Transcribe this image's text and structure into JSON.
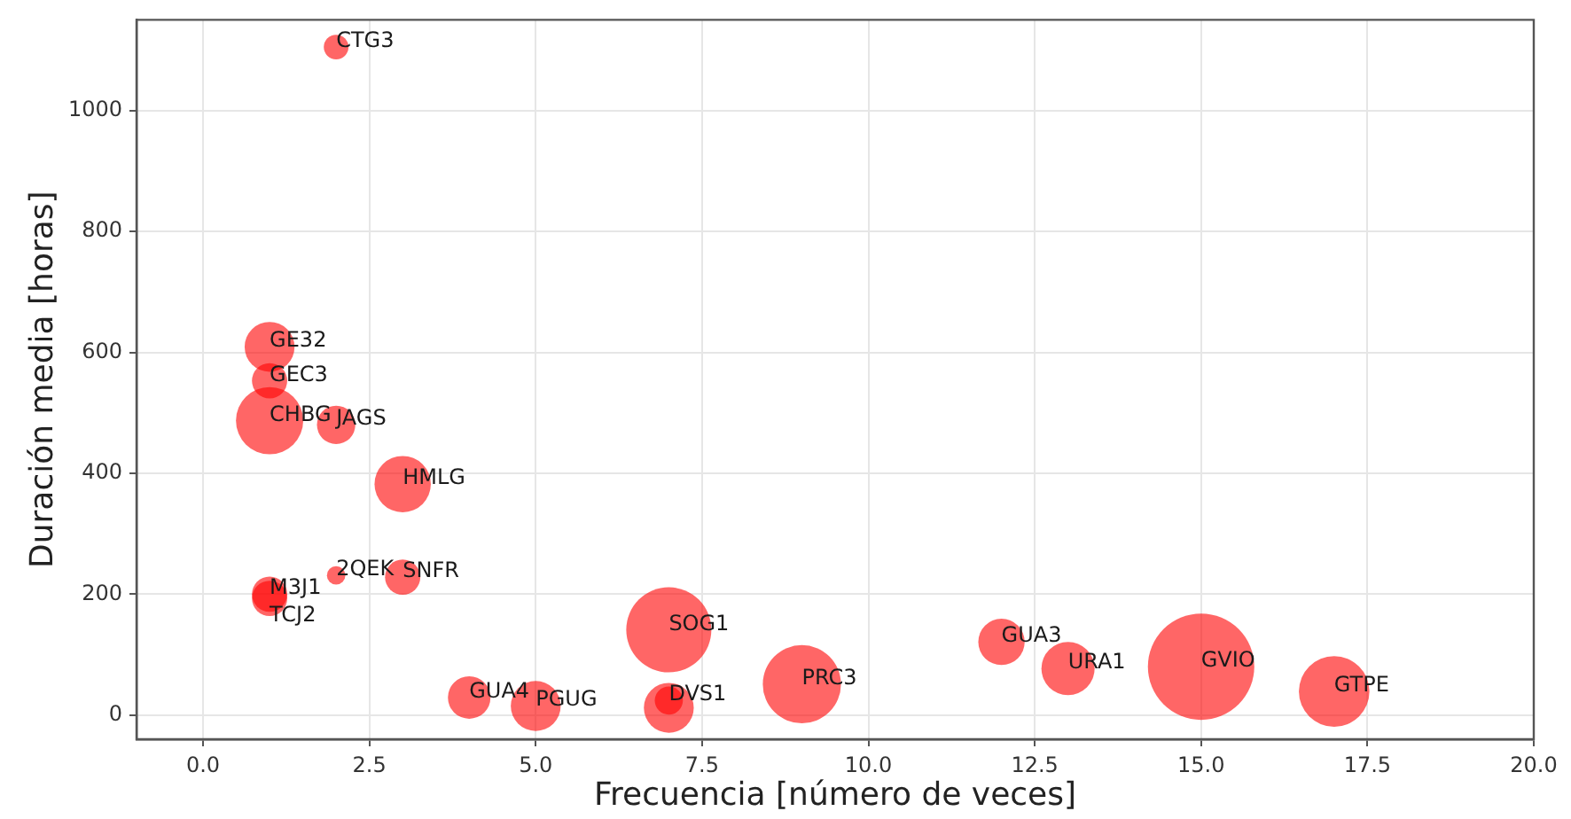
{
  "chart_data": {
    "type": "bubble",
    "xlabel": "Frecuencia [número de veces]",
    "ylabel": "Duración media [horas]",
    "x": [
      2,
      1,
      1,
      1,
      2,
      3,
      2,
      3,
      1,
      1,
      4,
      5,
      7,
      7,
      7,
      9,
      12,
      13,
      15,
      17
    ],
    "values": [
      1105,
      609,
      553,
      487,
      480,
      382,
      231,
      228,
      200,
      193,
      29,
      15,
      141,
      24,
      12,
      51,
      121,
      77,
      80,
      39
    ],
    "sizes": [
      0.054,
      0.22,
      0.11,
      0.4,
      0.13,
      0.28,
      0.03,
      0.11,
      0.11,
      0.11,
      0.16,
      0.22,
      0.64,
      0.07,
      0.22,
      0.54,
      0.19,
      0.25,
      1,
      0.44
    ],
    "color": "#ff6666",
    "xlim": [
      -1,
      20
    ],
    "xticks": [
      {
        "value": 0,
        "label": "0.0"
      },
      {
        "value": 2.5,
        "label": "2.5"
      },
      {
        "value": 5,
        "label": "5.0"
      },
      {
        "value": 7.5,
        "label": "7.5"
      },
      {
        "value": 10,
        "label": "10.0"
      },
      {
        "value": 12.5,
        "label": "12.5"
      },
      {
        "value": 15,
        "label": "15.0"
      },
      {
        "value": 17.5,
        "label": "17.5"
      },
      {
        "value": 20,
        "label": "20.0"
      }
    ],
    "ylim": [
      -40,
      1150
    ],
    "yticks": [
      0,
      200,
      400,
      600,
      800,
      1000
    ],
    "grid": true,
    "annotations": [
      {
        "text": "CTG3",
        "x": 2,
        "y": 1105
      },
      {
        "text": "GE32",
        "x": 1,
        "y": 609
      },
      {
        "text": "GEC3",
        "x": 1,
        "y": 553
      },
      {
        "text": "CHBG",
        "x": 1,
        "y": 487
      },
      {
        "text": "JAGS",
        "x": 2,
        "y": 480
      },
      {
        "text": "HMLG",
        "x": 3,
        "y": 382
      },
      {
        "text": "2QEK",
        "x": 2,
        "y": 231
      },
      {
        "text": "SNFR",
        "x": 3,
        "y": 228
      },
      {
        "text": "M3J1",
        "x": 1,
        "y": 200
      },
      {
        "text": "TCJ2",
        "x": 1,
        "y": 193
      },
      {
        "text": "GUA4",
        "x": 4,
        "y": 29
      },
      {
        "text": "PGUG",
        "x": 5,
        "y": 15
      },
      {
        "text": "SOG1",
        "x": 7,
        "y": 141
      },
      {
        "text": "DVS1",
        "x": 7,
        "y": 24
      },
      {
        "text": "PRC3",
        "x": 9,
        "y": 51
      },
      {
        "text": "GUA3",
        "x": 12,
        "y": 121
      },
      {
        "text": "URA1",
        "x": 13,
        "y": 77
      },
      {
        "text": "GVIO",
        "x": 15,
        "y": 80
      },
      {
        "text": "GTPE",
        "x": 17,
        "y": 39
      }
    ]
  }
}
